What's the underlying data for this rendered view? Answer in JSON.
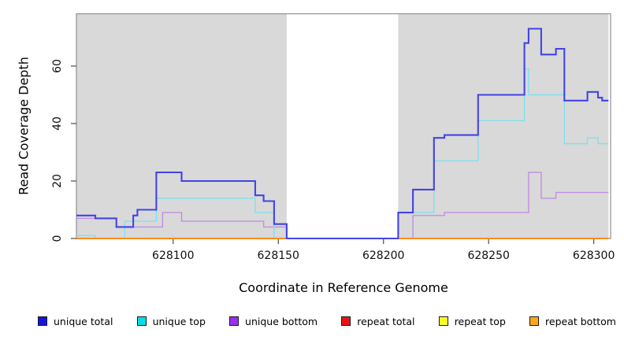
{
  "chart_data": {
    "type": "line",
    "subtype": "step-coverage",
    "title": "",
    "xlabel": "Coordinate in Reference Genome",
    "ylabel": "Read Coverage Depth",
    "xlim": [
      628054,
      628308
    ],
    "ylim": [
      0,
      78.2
    ],
    "x_ticks": [
      628100,
      628150,
      628200,
      628250,
      628300
    ],
    "y_ticks": [
      0,
      20,
      40,
      60
    ],
    "grid": false,
    "legend_position": "bottom",
    "shaded_regions": [
      {
        "from": 628054,
        "to": 628154,
        "color": "#d9d9d9"
      },
      {
        "from": 628207,
        "to": 628307,
        "color": "#d9d9d9"
      }
    ],
    "legend": [
      {
        "label": "unique total",
        "color": "#1414e0"
      },
      {
        "label": "unique top",
        "color": "#00dfe8"
      },
      {
        "label": "unique bottom",
        "color": "#9b30f0"
      },
      {
        "label": "repeat total",
        "color": "#e81414"
      },
      {
        "label": "repeat top",
        "color": "#fdfd20"
      },
      {
        "label": "repeat bottom",
        "color": "#ffa51e"
      }
    ],
    "series": [
      {
        "name": "repeat total",
        "line_color": "#e02020",
        "line_width": 1.4,
        "end": 628307,
        "steps": [
          [
            628054,
            0
          ]
        ]
      },
      {
        "name": "repeat top",
        "line_color": "#ffff00",
        "line_width": 1.4,
        "end": 628307,
        "steps": [
          [
            628054,
            0
          ]
        ]
      },
      {
        "name": "unique bottom",
        "line_color": "#c28fe2",
        "line_width": 1.4,
        "end": 628307,
        "steps": [
          [
            628054,
            7
          ],
          [
            628073,
            4
          ],
          [
            628095,
            9
          ],
          [
            628104,
            6
          ],
          [
            628143,
            4
          ],
          [
            628154,
            0
          ],
          [
            628214,
            8
          ],
          [
            628229,
            9
          ],
          [
            628269,
            23
          ],
          [
            628275,
            14
          ],
          [
            628282,
            16
          ]
        ]
      },
      {
        "name": "unique top",
        "line_color": "#80e1ea",
        "line_width": 1.4,
        "end": 628307,
        "steps": [
          [
            628054,
            1
          ],
          [
            628063,
            0
          ],
          [
            628077,
            6
          ],
          [
            628092,
            14
          ],
          [
            628139,
            9
          ],
          [
            628148,
            0
          ],
          [
            628207,
            9
          ],
          [
            628224,
            27
          ],
          [
            628245,
            41
          ],
          [
            628267,
            59
          ],
          [
            628269,
            50
          ],
          [
            628286,
            33
          ],
          [
            628297,
            35
          ],
          [
            628302,
            33
          ]
        ]
      },
      {
        "name": "repeat bottom",
        "line_color": "#ff8c1e",
        "line_width": 2,
        "end": 628307,
        "steps": [
          [
            628054,
            0
          ]
        ]
      },
      {
        "name": "unique total",
        "line_color": "#4343e6",
        "line_width": 2.1,
        "end": 628307,
        "steps": [
          [
            628054,
            8
          ],
          [
            628063,
            7
          ],
          [
            628073,
            4
          ],
          [
            628081,
            8
          ],
          [
            628083,
            10
          ],
          [
            628092,
            23
          ],
          [
            628104,
            20
          ],
          [
            628139,
            15
          ],
          [
            628143,
            13
          ],
          [
            628148,
            5
          ],
          [
            628154,
            0
          ],
          [
            628207,
            9
          ],
          [
            628214,
            17
          ],
          [
            628224,
            35
          ],
          [
            628229,
            36
          ],
          [
            628245,
            50
          ],
          [
            628267,
            68
          ],
          [
            628269,
            73
          ],
          [
            628275,
            64
          ],
          [
            628282,
            66
          ],
          [
            628286,
            48
          ],
          [
            628297,
            51
          ],
          [
            628302,
            49
          ],
          [
            628304,
            48
          ]
        ]
      }
    ]
  }
}
